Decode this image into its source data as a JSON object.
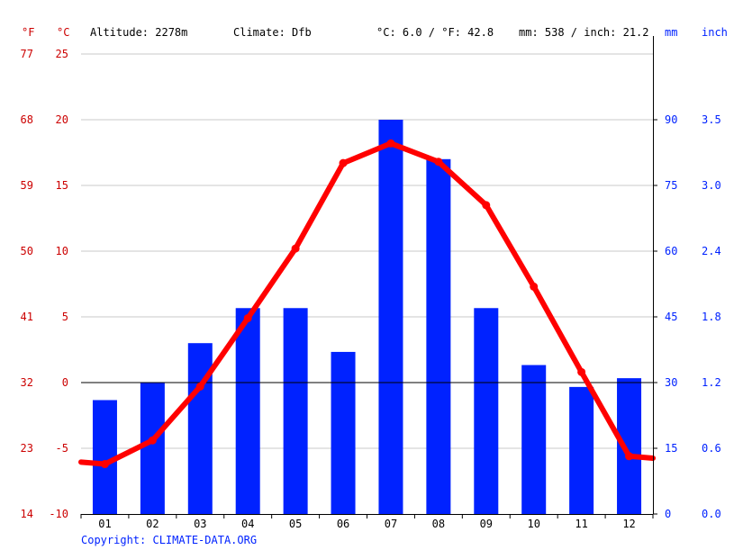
{
  "header": {
    "unit_f": "°F",
    "unit_c": "°C",
    "altitude": "Altitude: 2278m",
    "climate": "Climate: Dfb",
    "temp_summary": "°C: 6.0 / °F: 42.8",
    "precip_summary": "mm: 538 / inch: 21.2",
    "unit_mm": "mm",
    "unit_inch": "inch"
  },
  "copyright": "Copyright: CLIMATE-DATA.ORG",
  "colors": {
    "temperature": "#ff0000",
    "precipitation": "#0022ff",
    "temp_axis_text": "#cc0000",
    "precip_axis_text": "#0022ff",
    "grid": "#c8c8c8",
    "zero_line": "#000000"
  },
  "chart_data": {
    "type": "bar+line",
    "categories": [
      "01",
      "02",
      "03",
      "04",
      "05",
      "06",
      "07",
      "08",
      "09",
      "10",
      "11",
      "12"
    ],
    "series": [
      {
        "type": "bar",
        "axis": "right",
        "unit": "mm",
        "values": [
          26,
          30,
          39,
          47,
          47,
          37,
          90,
          81,
          47,
          34,
          29,
          31
        ]
      },
      {
        "type": "line",
        "axis": "left",
        "unit": "°C",
        "values": [
          -6.2,
          -4.4,
          -0.3,
          4.9,
          10.2,
          16.7,
          18.2,
          16.8,
          13.5,
          7.3,
          0.8,
          -5.6
        ]
      }
    ],
    "temperature_axis": {
      "ylim": [
        -10,
        25
      ],
      "ticks_c": [
        "-10",
        "-5",
        "0",
        "5",
        "10",
        "15",
        "20",
        "25"
      ],
      "ticks_f": [
        "14",
        "23",
        "32",
        "41",
        "50",
        "59",
        "68",
        "77"
      ]
    },
    "precipitation_axis": {
      "ylim": [
        0,
        105
      ],
      "ticks_mm": [
        "0",
        "15",
        "30",
        "45",
        "60",
        "75",
        "90"
      ],
      "ticks_inch": [
        "0.0",
        "0.6",
        "1.2",
        "1.8",
        "2.4",
        "3.0",
        "3.5"
      ]
    },
    "grid": true
  }
}
